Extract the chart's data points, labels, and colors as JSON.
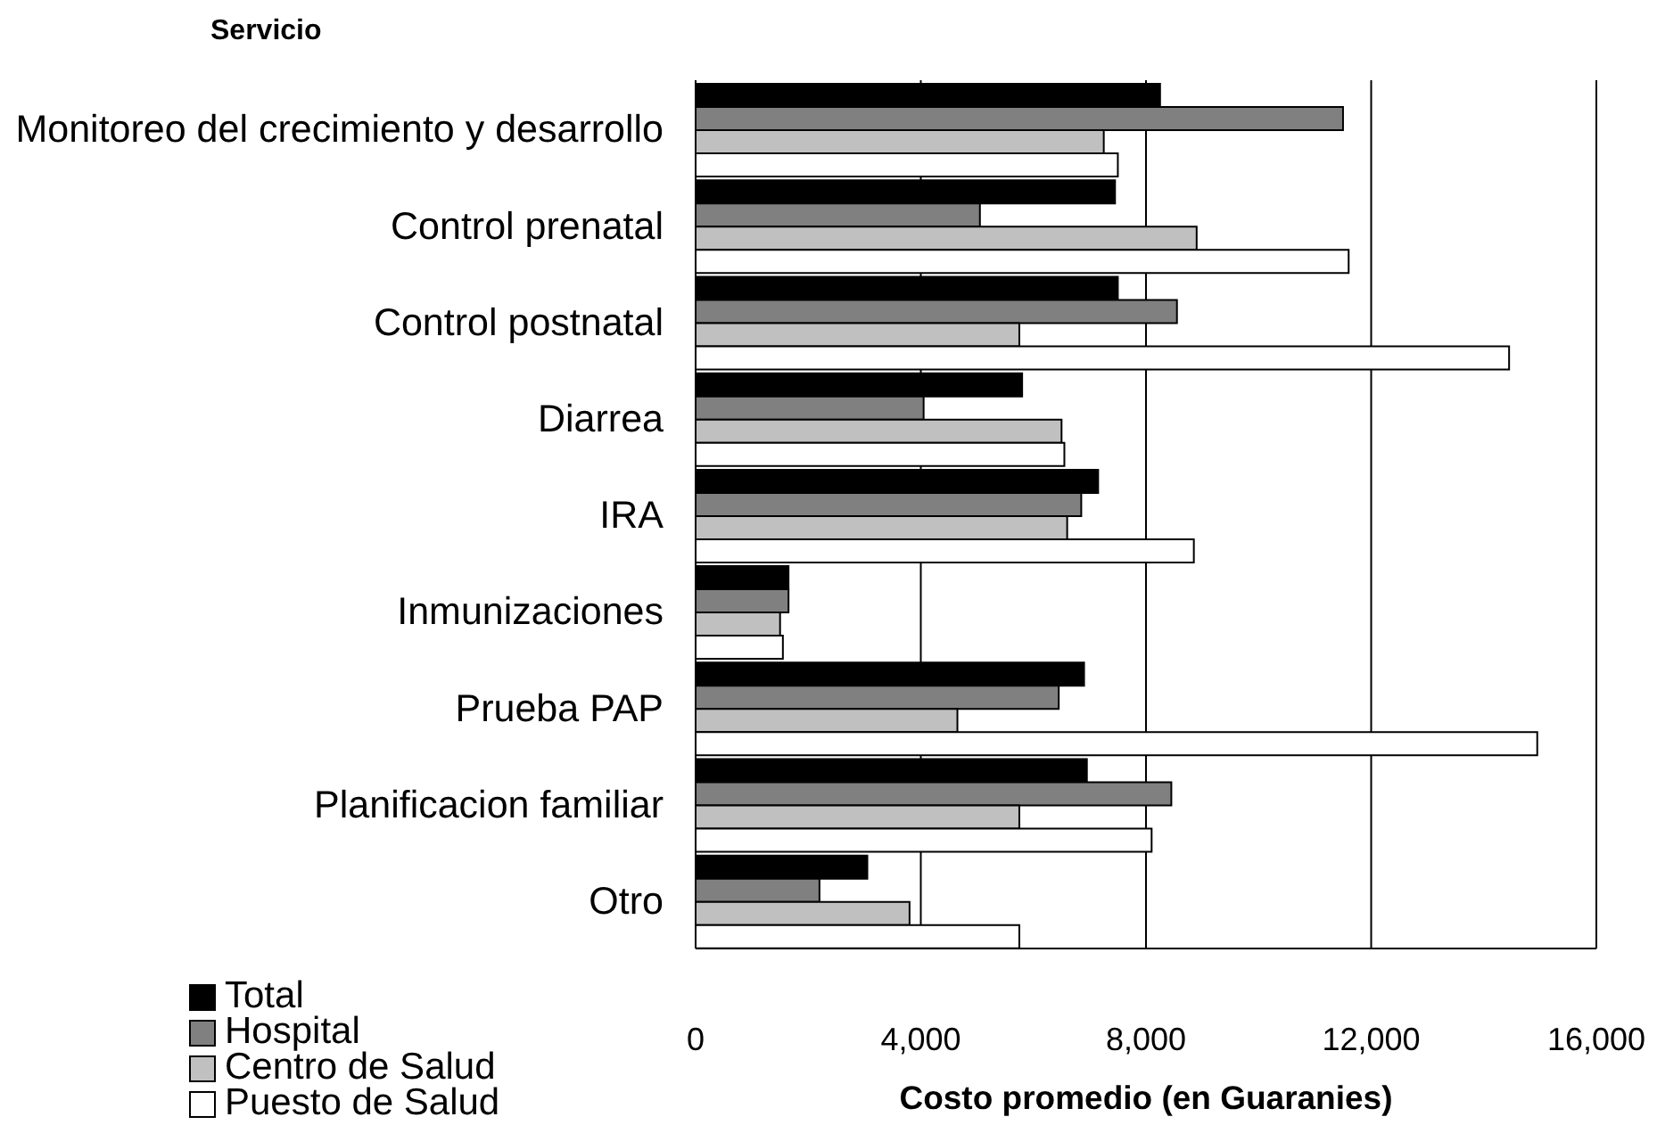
{
  "chart_data": {
    "type": "bar",
    "orientation": "horizontal",
    "ylabel": "Servicio",
    "xlabel": "Costo promedio (en Guaranies)",
    "categories": [
      "Monitoreo del crecimiento y desarrollo",
      "Control prenatal",
      "Control postnatal",
      "Diarrea",
      "IRA",
      "Inmunizaciones",
      "Prueba PAP",
      "Planificacion familiar",
      "Otro"
    ],
    "series": [
      {
        "name": "Total",
        "color": "#000000",
        "values": [
          8250,
          7450,
          7500,
          5800,
          7150,
          1650,
          6900,
          6950,
          3050
        ]
      },
      {
        "name": "Hospital",
        "color": "#808080",
        "values": [
          11500,
          5050,
          8550,
          4050,
          6850,
          1650,
          6450,
          8450,
          2200
        ]
      },
      {
        "name": "Centro de Salud",
        "color": "#c0c0c0",
        "values": [
          7250,
          8900,
          5750,
          6500,
          6600,
          1500,
          4650,
          5750,
          3800
        ]
      },
      {
        "name": "Puesto de Salud",
        "color": "#ffffff",
        "values": [
          7500,
          11600,
          14450,
          6550,
          8850,
          1550,
          14950,
          8100,
          5750
        ]
      }
    ],
    "xlim": [
      0,
      16000
    ],
    "xticks": [
      0,
      {
        "value": 4000,
        "label": "4,000"
      },
      {
        "value": 8000,
        "label": "8,000"
      },
      {
        "value": 12000,
        "label": "12,000"
      },
      {
        "value": 16000,
        "label": "16,000"
      }
    ],
    "grid": "x",
    "legend": "bottom left"
  }
}
